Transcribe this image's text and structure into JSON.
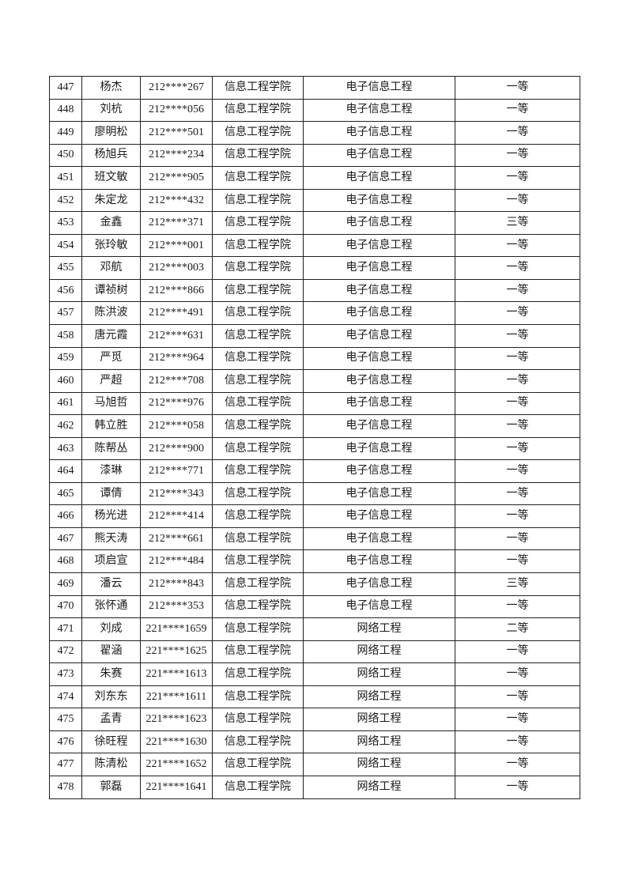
{
  "page": {
    "background_color": "#ffffff",
    "text_color": "#1a1a1a",
    "border_color": "#222222"
  },
  "table": {
    "cell_names": [
      "serial-number",
      "student-name",
      "student-id",
      "college",
      "major",
      "award-level"
    ],
    "rows": [
      [
        "447",
        "杨杰",
        "212****267",
        "信息工程学院",
        "电子信息工程",
        "一等"
      ],
      [
        "448",
        "刘杭",
        "212****056",
        "信息工程学院",
        "电子信息工程",
        "一等"
      ],
      [
        "449",
        "廖明松",
        "212****501",
        "信息工程学院",
        "电子信息工程",
        "一等"
      ],
      [
        "450",
        "杨旭兵",
        "212****234",
        "信息工程学院",
        "电子信息工程",
        "一等"
      ],
      [
        "451",
        "班文敏",
        "212****905",
        "信息工程学院",
        "电子信息工程",
        "一等"
      ],
      [
        "452",
        "朱定龙",
        "212****432",
        "信息工程学院",
        "电子信息工程",
        "一等"
      ],
      [
        "453",
        "金鑫",
        "212****371",
        "信息工程学院",
        "电子信息工程",
        "三等"
      ],
      [
        "454",
        "张玲敏",
        "212****001",
        "信息工程学院",
        "电子信息工程",
        "一等"
      ],
      [
        "455",
        "邓航",
        "212****003",
        "信息工程学院",
        "电子信息工程",
        "一等"
      ],
      [
        "456",
        "谭祯树",
        "212****866",
        "信息工程学院",
        "电子信息工程",
        "一等"
      ],
      [
        "457",
        "陈洪波",
        "212****491",
        "信息工程学院",
        "电子信息工程",
        "一等"
      ],
      [
        "458",
        "唐元霞",
        "212****631",
        "信息工程学院",
        "电子信息工程",
        "一等"
      ],
      [
        "459",
        "严觅",
        "212****964",
        "信息工程学院",
        "电子信息工程",
        "一等"
      ],
      [
        "460",
        "严超",
        "212****708",
        "信息工程学院",
        "电子信息工程",
        "一等"
      ],
      [
        "461",
        "马旭哲",
        "212****976",
        "信息工程学院",
        "电子信息工程",
        "一等"
      ],
      [
        "462",
        "韩立胜",
        "212****058",
        "信息工程学院",
        "电子信息工程",
        "一等"
      ],
      [
        "463",
        "陈帮丛",
        "212****900",
        "信息工程学院",
        "电子信息工程",
        "一等"
      ],
      [
        "464",
        "漆琳",
        "212****771",
        "信息工程学院",
        "电子信息工程",
        "一等"
      ],
      [
        "465",
        "谭倩",
        "212****343",
        "信息工程学院",
        "电子信息工程",
        "一等"
      ],
      [
        "466",
        "杨光进",
        "212****414",
        "信息工程学院",
        "电子信息工程",
        "一等"
      ],
      [
        "467",
        "熊天涛",
        "212****661",
        "信息工程学院",
        "电子信息工程",
        "一等"
      ],
      [
        "468",
        "项启宣",
        "212****484",
        "信息工程学院",
        "电子信息工程",
        "一等"
      ],
      [
        "469",
        "潘云",
        "212****843",
        "信息工程学院",
        "电子信息工程",
        "三等"
      ],
      [
        "470",
        "张怀通",
        "212****353",
        "信息工程学院",
        "电子信息工程",
        "一等"
      ],
      [
        "471",
        "刘成",
        "221****1659",
        "信息工程学院",
        "网络工程",
        "二等"
      ],
      [
        "472",
        "翟涵",
        "221****1625",
        "信息工程学院",
        "网络工程",
        "一等"
      ],
      [
        "473",
        "朱赛",
        "221****1613",
        "信息工程学院",
        "网络工程",
        "一等"
      ],
      [
        "474",
        "刘东东",
        "221****1611",
        "信息工程学院",
        "网络工程",
        "一等"
      ],
      [
        "475",
        "孟青",
        "221****1623",
        "信息工程学院",
        "网络工程",
        "一等"
      ],
      [
        "476",
        "徐旺程",
        "221****1630",
        "信息工程学院",
        "网络工程",
        "一等"
      ],
      [
        "477",
        "陈清松",
        "221****1652",
        "信息工程学院",
        "网络工程",
        "一等"
      ],
      [
        "478",
        "郭磊",
        "221****1641",
        "信息工程学院",
        "网络工程",
        "一等"
      ]
    ]
  }
}
